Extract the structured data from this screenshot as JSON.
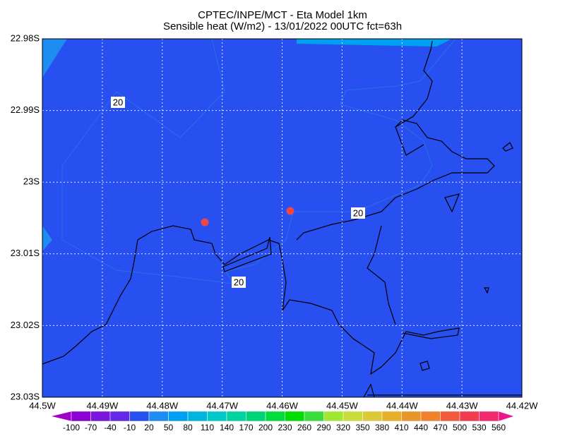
{
  "title": [
    "CPTEC/INPE/MCT -  Eta Model 1km",
    "Sensible heat (W/m2) - 13/01/2022 00UTC fct=63h"
  ],
  "lat_labels": [
    "22.98S",
    "22.99S",
    "23S",
    "23.01S",
    "23.02S",
    "23.03S"
  ],
  "lon_labels": [
    "44.5W",
    "44.49W",
    "44.48W",
    "44.47W",
    "44.46W",
    "44.45W",
    "44.44W",
    "44.43W",
    "44.42W"
  ],
  "contour_labels": [
    "20",
    "20",
    "20"
  ],
  "colorbar": {
    "levels": [
      -100,
      -70,
      -40,
      -10,
      20,
      50,
      80,
      110,
      140,
      170,
      200,
      230,
      260,
      290,
      320,
      350,
      380,
      410,
      440,
      470,
      500,
      530,
      560
    ],
    "colors": [
      "#a000c8",
      "#8c00d2",
      "#7814dc",
      "#6428e6",
      "#2850f0",
      "#1e8cf0",
      "#00a0f0",
      "#00b4dc",
      "#00c8c8",
      "#00d2a0",
      "#00d278",
      "#00dc3c",
      "#00dc00",
      "#3cdc3c",
      "#a0e632",
      "#c8dc3c",
      "#dcc83c",
      "#e6af2d",
      "#e6962d",
      "#f0822d",
      "#f05a3c",
      "#f03c50",
      "#f0286e",
      "#f0148c"
    ]
  }
}
